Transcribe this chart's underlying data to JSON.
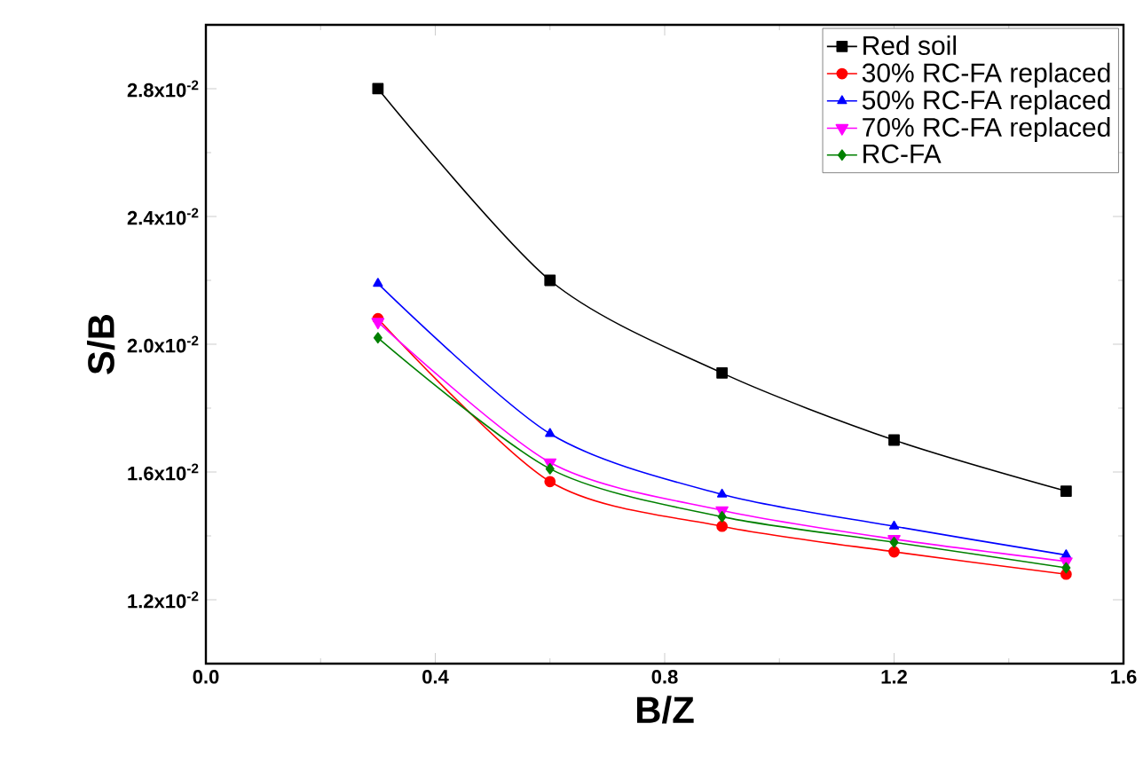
{
  "chart_data": {
    "type": "line",
    "xlabel": "B/Z",
    "ylabel": "S/B",
    "x": [
      0.3,
      0.6,
      0.9,
      1.2,
      1.5
    ],
    "series": [
      {
        "name": "Red soil",
        "color": "#000000",
        "marker": "square",
        "values": [
          0.028,
          0.022,
          0.0191,
          0.017,
          0.0154
        ]
      },
      {
        "name": "30% RC-FA replaced",
        "color": "#ff0000",
        "marker": "circle",
        "values": [
          0.0208,
          0.0157,
          0.0143,
          0.0135,
          0.0128
        ]
      },
      {
        "name": "50% RC-FA replaced",
        "color": "#0000ff",
        "marker": "triangle",
        "values": [
          0.0219,
          0.0172,
          0.0153,
          0.0143,
          0.0134
        ]
      },
      {
        "name": "70% RC-FA replaced",
        "color": "#ff00ff",
        "marker": "triangle-down",
        "values": [
          0.0207,
          0.0163,
          0.0148,
          0.0139,
          0.0132
        ]
      },
      {
        "name": "RC-FA",
        "color": "#008000",
        "marker": "diamond",
        "values": [
          0.0202,
          0.0161,
          0.0146,
          0.0138,
          0.013
        ]
      }
    ],
    "xlim": [
      0,
      1.6
    ],
    "xticks": [
      {
        "value": 0,
        "label": "0.0"
      },
      0.4,
      0.8,
      1.2,
      1.6
    ],
    "ylim": [
      0.01,
      0.03
    ],
    "yticks": [
      {
        "value": 0.012,
        "label": "1.2x10$^{-2}$"
      },
      {
        "value": 0.016,
        "label": "1.6x10$^{-2}$"
      },
      {
        "value": 0.02,
        "label": "2.0x10$^{-2}$"
      },
      {
        "value": 0.024,
        "label": "2.4x10$^{-2}$"
      },
      {
        "value": 0.028,
        "label": "2.8x10$^{-2}$"
      }
    ],
    "grid": false,
    "legend": "top right",
    "line_style": "solid"
  }
}
